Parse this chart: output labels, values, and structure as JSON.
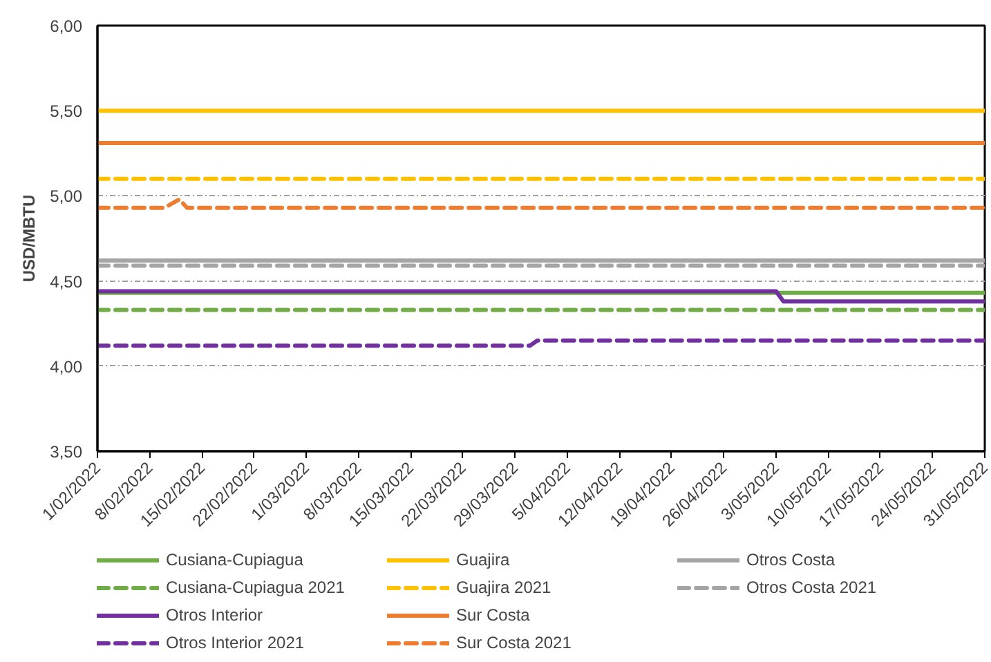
{
  "chart_data": {
    "type": "line",
    "ylabel": "USD/MBTU",
    "xlim": [
      "2022-02-01",
      "2022-05-31"
    ],
    "xticks": [
      {
        "value": "2022-02-01",
        "label": "1/02/2022"
      },
      {
        "value": "2022-02-08",
        "label": "8/02/2022"
      },
      {
        "value": "2022-02-15",
        "label": "15/02/2022"
      },
      {
        "value": "2022-02-22",
        "label": "22/02/2022"
      },
      {
        "value": "2022-03-01",
        "label": "1/03/2022"
      },
      {
        "value": "2022-03-08",
        "label": "8/03/2022"
      },
      {
        "value": "2022-03-15",
        "label": "15/03/2022"
      },
      {
        "value": "2022-03-22",
        "label": "22/03/2022"
      },
      {
        "value": "2022-03-29",
        "label": "29/03/2022"
      },
      {
        "value": "2022-04-05",
        "label": "5/04/2022"
      },
      {
        "value": "2022-04-12",
        "label": "12/04/2022"
      },
      {
        "value": "2022-04-19",
        "label": "19/04/2022"
      },
      {
        "value": "2022-04-26",
        "label": "26/04/2022"
      },
      {
        "value": "2022-05-03",
        "label": "3/05/2022"
      },
      {
        "value": "2022-05-10",
        "label": "10/05/2022"
      },
      {
        "value": "2022-05-17",
        "label": "17/05/2022"
      },
      {
        "value": "2022-05-24",
        "label": "24/05/2022"
      },
      {
        "value": "2022-05-31",
        "label": "31/05/2022"
      }
    ],
    "ylim": [
      3.5,
      6.0
    ],
    "yticks": [
      {
        "value": 3.5,
        "label": "3,50"
      },
      {
        "value": 4.0,
        "label": "4,00"
      },
      {
        "value": 4.5,
        "label": "4,50"
      },
      {
        "value": 5.0,
        "label": "5,00"
      },
      {
        "value": 5.5,
        "label": "5,50"
      },
      {
        "value": 6.0,
        "label": "6,00"
      }
    ],
    "grid": "y",
    "legend": "bottom",
    "marker": "none",
    "series": [
      {
        "name": "Cusiana-Cupiagua",
        "color": "#70ad47",
        "line_style": "solid",
        "x": [
          "2022-02-01",
          "2022-05-31"
        ],
        "values": [
          4.43,
          4.43
        ]
      },
      {
        "name": "Cusiana-Cupiagua 2021",
        "color": "#70ad47",
        "line_style": "dashed",
        "x": [
          "2022-02-01",
          "2022-05-31"
        ],
        "values": [
          4.33,
          4.33
        ]
      },
      {
        "name": "Otros Interior",
        "color": "#7030a0",
        "line_style": "solid",
        "x": [
          "2022-02-01",
          "2022-05-03",
          "2022-05-04",
          "2022-05-31"
        ],
        "values": [
          4.44,
          4.44,
          4.38,
          4.38
        ]
      },
      {
        "name": "Otros Interior 2021",
        "color": "#7030a0",
        "line_style": "dashed",
        "x": [
          "2022-02-01",
          "2022-03-31",
          "2022-04-01",
          "2022-05-31"
        ],
        "values": [
          4.12,
          4.12,
          4.15,
          4.15
        ]
      },
      {
        "name": "Guajira",
        "color": "#ffc000",
        "line_style": "solid",
        "x": [
          "2022-02-01",
          "2022-05-31"
        ],
        "values": [
          5.5,
          5.5
        ]
      },
      {
        "name": "Guajira 2021",
        "color": "#ffc000",
        "line_style": "dashed",
        "x": [
          "2022-02-01",
          "2022-05-31"
        ],
        "values": [
          5.1,
          5.1
        ]
      },
      {
        "name": "Sur Costa",
        "color": "#ed7d31",
        "line_style": "solid",
        "x": [
          "2022-02-01",
          "2022-05-31"
        ],
        "values": [
          5.31,
          5.31
        ]
      },
      {
        "name": "Sur Costa 2021",
        "color": "#ed7d31",
        "line_style": "dashed",
        "x": [
          "2022-02-01",
          "2022-02-10",
          "2022-02-12",
          "2022-02-13",
          "2022-05-31"
        ],
        "values": [
          4.93,
          4.93,
          4.98,
          4.93,
          4.93
        ]
      },
      {
        "name": "Otros Costa",
        "color": "#a5a5a5",
        "line_style": "solid",
        "x": [
          "2022-02-01",
          "2022-05-31"
        ],
        "values": [
          4.62,
          4.62
        ]
      },
      {
        "name": "Otros Costa 2021",
        "color": "#a5a5a5",
        "line_style": "dashed",
        "x": [
          "2022-02-01",
          "2022-05-31"
        ],
        "values": [
          4.59,
          4.59
        ]
      }
    ]
  }
}
